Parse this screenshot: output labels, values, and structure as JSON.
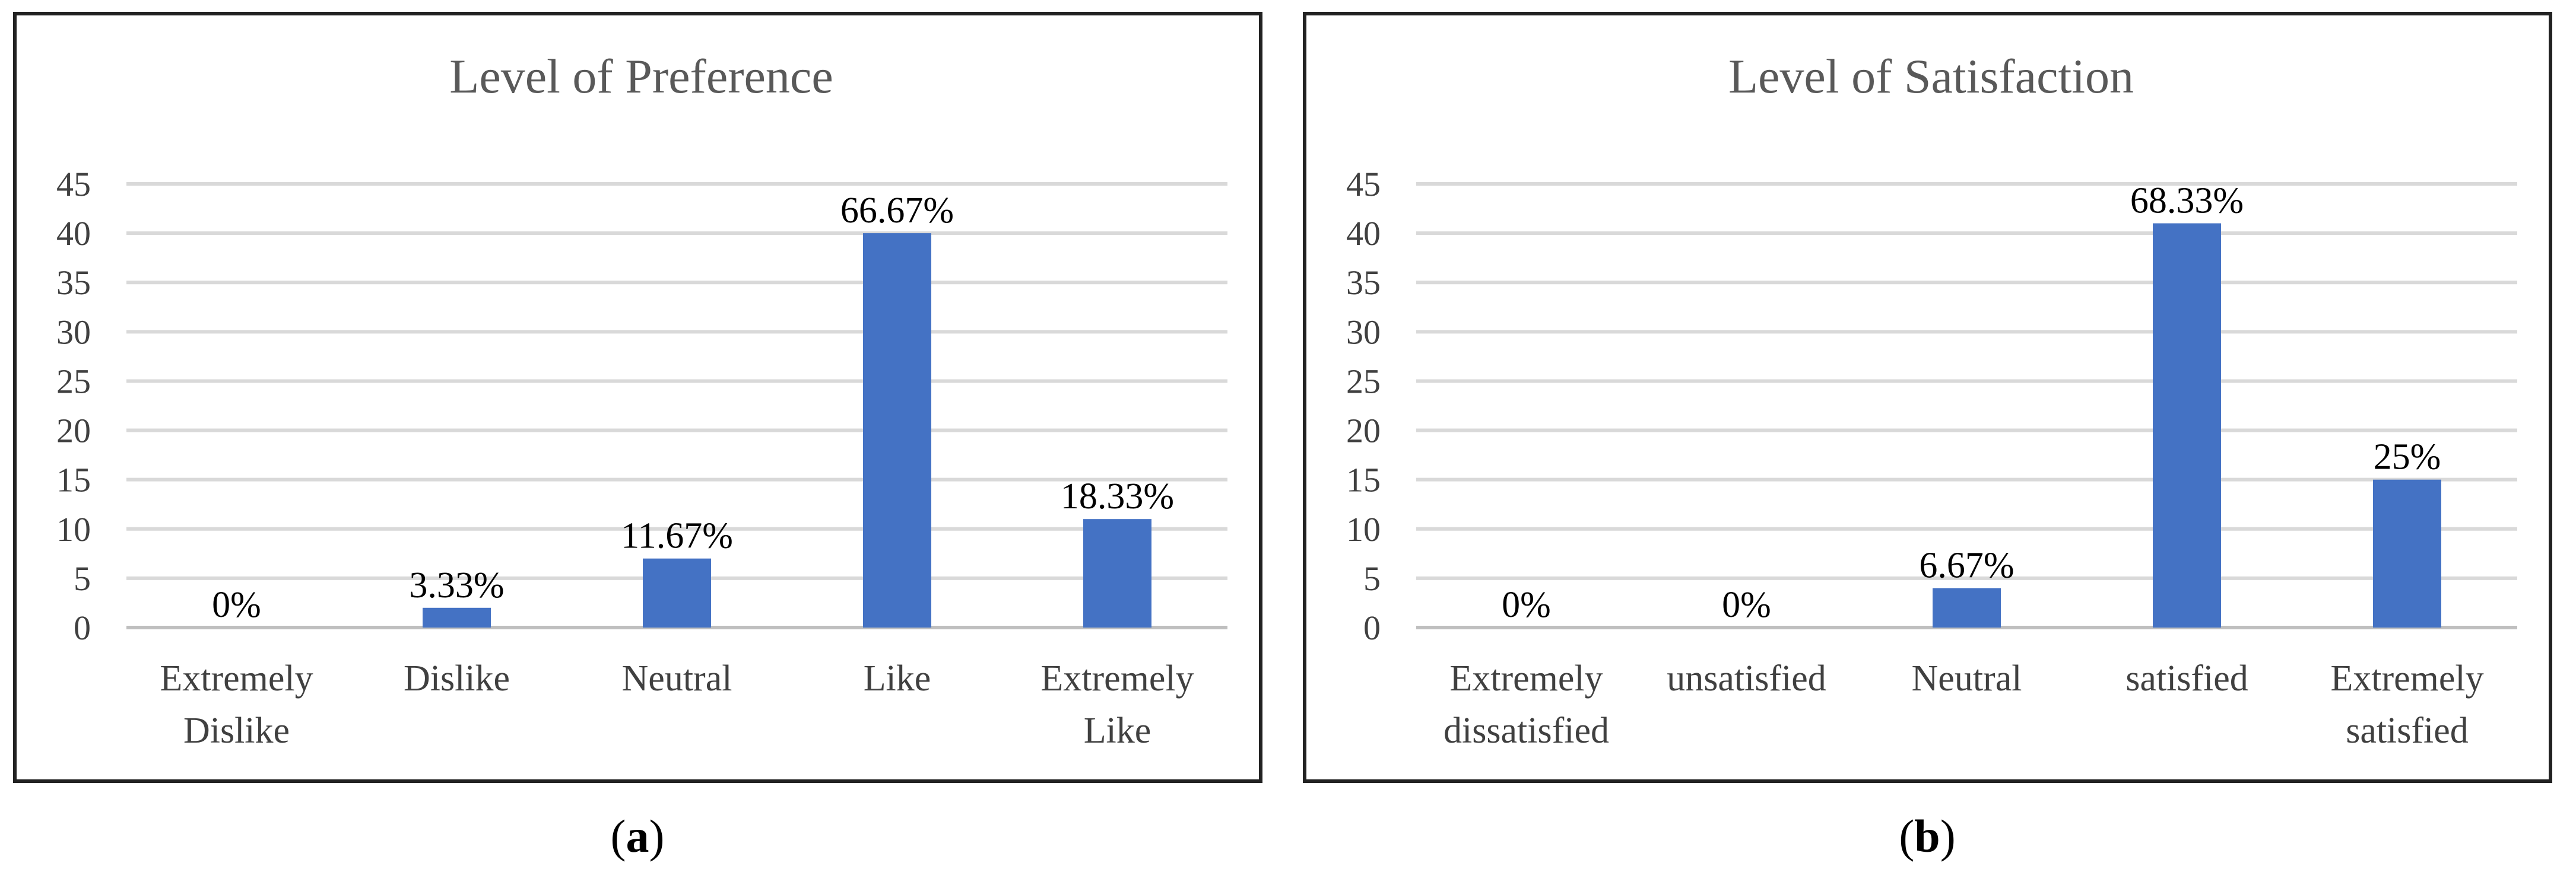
{
  "chart_data": [
    {
      "type": "bar",
      "title": "Level of Preference",
      "categories": [
        [
          "Extremely",
          "Dislike"
        ],
        [
          "Dislike"
        ],
        [
          "Neutral"
        ],
        [
          "Like"
        ],
        [
          "Extremely",
          "Like"
        ]
      ],
      "values": [
        0,
        2,
        7,
        40,
        11
      ],
      "data_labels": [
        "0%",
        "3.33%",
        "11.67%",
        "66.67%",
        "18.33%"
      ],
      "yticks": [
        "0",
        "5",
        "10",
        "15",
        "20",
        "25",
        "30",
        "35",
        "40",
        "45"
      ],
      "ylim": [
        0,
        45
      ],
      "grid": true,
      "bar_color": "#4472c4",
      "xlabel": "",
      "ylabel": ""
    },
    {
      "type": "bar",
      "title": "Level of Satisfaction",
      "categories": [
        [
          "Extremely",
          "dissatisfied"
        ],
        [
          "unsatisfied"
        ],
        [
          "Neutral"
        ],
        [
          "satisfied"
        ],
        [
          "Extremely",
          "satisfied"
        ]
      ],
      "values": [
        0,
        0,
        4,
        41,
        15
      ],
      "data_labels": [
        "0%",
        "0%",
        "6.67%",
        "68.33%",
        "25%"
      ],
      "yticks": [
        "0",
        "5",
        "10",
        "15",
        "20",
        "25",
        "30",
        "35",
        "40",
        "45"
      ],
      "ylim": [
        0,
        45
      ],
      "grid": true,
      "bar_color": "#4472c4",
      "xlabel": "",
      "ylabel": ""
    }
  ],
  "captions": {
    "a": {
      "open": "(",
      "letter": "a",
      "close": ")"
    },
    "b": {
      "open": "(",
      "letter": "b",
      "close": ")"
    }
  }
}
